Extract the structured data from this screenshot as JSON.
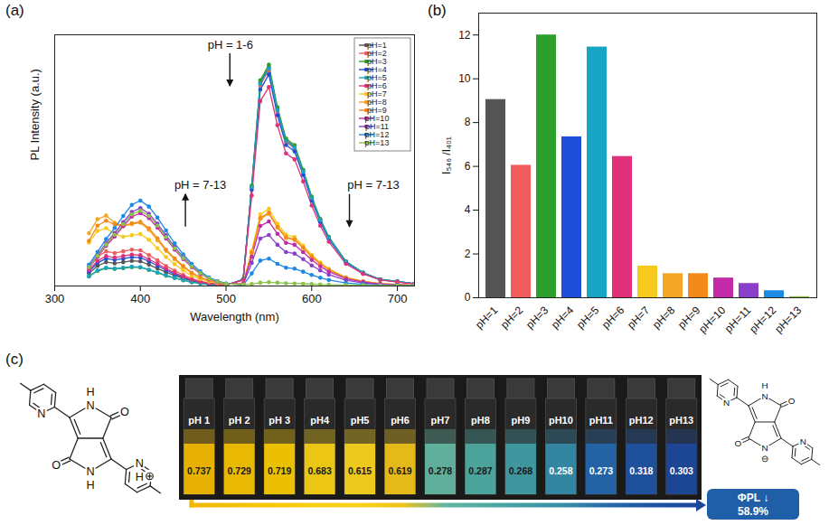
{
  "chart_data": [
    {
      "type": "line",
      "title": "(a)",
      "x_label": "Wavelength (nm)",
      "y_label": "PL Intensity (a.u.)",
      "x": [
        340,
        350,
        360,
        370,
        380,
        390,
        400,
        410,
        420,
        430,
        440,
        450,
        460,
        470,
        480,
        490,
        500,
        520,
        530,
        540,
        550,
        560,
        570,
        580,
        590,
        600,
        610,
        620,
        640,
        660,
        680,
        700,
        720
      ],
      "series": [
        {
          "name": "pH=1",
          "color": "#555555",
          "values": [
            5,
            8,
            9.5,
            9,
            9.5,
            10,
            9.8,
            8.5,
            7,
            5.5,
            4.2,
            3,
            2,
            1.3,
            0.8,
            0.5,
            0.3,
            2.6,
            39.6,
            81,
            87.1,
            70.4,
            58.1,
            55.4,
            45.8,
            35.2,
            26.4,
            19.4,
            9.7,
            5.3,
            2.6,
            1.8,
            0.9
          ]
        },
        {
          "name": "pH=2",
          "color": "#f25c5c",
          "values": [
            7.3,
            11.6,
            13.8,
            13.1,
            13.8,
            14.5,
            14.2,
            12.3,
            10.2,
            8,
            6.1,
            4.4,
            2.9,
            1.9,
            1.2,
            0.7,
            0.4,
            2.6,
            39.2,
            80,
            86.1,
            69.6,
            57.4,
            54.8,
            45.2,
            34.8,
            26.1,
            19.1,
            9.6,
            5.2,
            2.6,
            1.7,
            0.9
          ]
        },
        {
          "name": "pH=3",
          "color": "#2ca02c",
          "values": [
            3.8,
            6,
            7.1,
            6.8,
            7.1,
            7.5,
            7.4,
            6.4,
            5.3,
            4.1,
            3.2,
            2.3,
            1.5,
            1,
            0.6,
            0.4,
            0.2,
            2.7,
            40,
            81.9,
            88.1,
            71.2,
            58.7,
            56.1,
            46.3,
            35.6,
            26.7,
            19.6,
            9.8,
            5.3,
            2.7,
            1.8,
            0.9
          ]
        },
        {
          "name": "pH=4",
          "color": "#1f4fd8",
          "values": [
            5.8,
            9.2,
            10.9,
            10.4,
            10.9,
            11.5,
            11.3,
            9.8,
            8.1,
            6.3,
            4.8,
            3.5,
            2.3,
            1.5,
            0.9,
            0.6,
            0.3,
            2.6,
            38.3,
            78.2,
            84.2,
            68,
            56.1,
            53.6,
            44.2,
            34,
            25.5,
            18.7,
            9.4,
            5.1,
            2.6,
            1.7,
            0.9
          ]
        },
        {
          "name": "pH=5",
          "color": "#18a4c4",
          "values": [
            3.9,
            6.2,
            7.3,
            6.9,
            7.3,
            7.7,
            7.5,
            6.5,
            5.4,
            4.2,
            3.2,
            2.3,
            1.5,
            1,
            0.6,
            0.4,
            0.2,
            2.6,
            39.4,
            80.5,
            86.6,
            70,
            57.8,
            55.1,
            45.5,
            35,
            26.3,
            19.3,
            9.6,
            5.3,
            2.6,
            1.8,
            0.9
          ]
        },
        {
          "name": "pH=6",
          "color": "#e0307a",
          "values": [
            6.3,
            10,
            11.9,
            11.3,
            11.9,
            12.5,
            12.3,
            10.6,
            8.8,
            6.9,
            5.3,
            3.8,
            2.5,
            1.6,
            1,
            0.6,
            0.4,
            2.4,
            36,
            73.6,
            79.2,
            64,
            52.8,
            50.4,
            41.6,
            32,
            24,
            17.6,
            8.8,
            4.8,
            2.4,
            1.6,
            0.8
          ]
        },
        {
          "name": "pH=7",
          "color": "#f7c81e",
          "values": [
            17.3,
            21.9,
            23,
            20.7,
            19.6,
            20.2,
            20.7,
            18.4,
            15,
            11.5,
            8.7,
            6.2,
            4.1,
            2.8,
            1.8,
            1.2,
            0.7,
            0.9,
            14,
            28.5,
            30.7,
            24.8,
            20.5,
            19.5,
            16.1,
            12.4,
            9.3,
            6.8,
            3.4,
            1.9,
            0.9,
            0.6,
            0.3
          ]
        },
        {
          "name": "pH=8",
          "color": "#f5a524",
          "values": [
            21,
            26.6,
            28,
            25.2,
            23.8,
            24.6,
            25.2,
            22.4,
            18.2,
            14,
            10.6,
            7.6,
            5,
            3.4,
            2.2,
            1.4,
            0.8,
            0.9,
            13.1,
            26.7,
            28.7,
            23.2,
            19.1,
            18.3,
            15.1,
            11.6,
            8.7,
            6.4,
            3.2,
            1.7,
            0.9,
            0.6,
            0.3
          ]
        },
        {
          "name": "pH=9",
          "color": "#f28a1c",
          "values": [
            18,
            24,
            26,
            24.5,
            24,
            25,
            25.5,
            23,
            19,
            14.5,
            11,
            8,
            5.3,
            3.5,
            2.2,
            1.4,
            0.8,
            0.9,
            13.3,
            27.1,
            29.2,
            23.6,
            19.5,
            18.6,
            15.3,
            11.8,
            8.9,
            6.5,
            3.2,
            1.8,
            0.9,
            0.6,
            0.3
          ]
        },
        {
          "name": "pH=10",
          "color": "#c22aa8",
          "values": [
            7.3,
            11.6,
            16,
            19.7,
            23.8,
            27.6,
            29,
            27,
            23.2,
            18.9,
            14.5,
            10.7,
            7.5,
            4.9,
            2.9,
            1.7,
            0.9,
            0.8,
            11.7,
            23.9,
            25.7,
            20.8,
            17.2,
            16.4,
            13.5,
            10.4,
            7.8,
            5.7,
            2.9,
            1.6,
            0.8,
            0.5,
            0.3
          ]
        },
        {
          "name": "pH=11",
          "color": "#8a3fc9",
          "values": [
            7.8,
            12.4,
            17.1,
            21.1,
            25.4,
            29.5,
            31,
            28.8,
            24.8,
            20.2,
            15.5,
            11.5,
            8.1,
            5.3,
            3.1,
            1.9,
            0.9,
            0.6,
            9.2,
            18.9,
            20.3,
            16.4,
            13.5,
            12.9,
            10.7,
            8.2,
            6.2,
            4.5,
            2.3,
            1.2,
            0.6,
            0.4,
            0.2
          ]
        },
        {
          "name": "pH=12",
          "color": "#1e88e5",
          "values": [
            8.5,
            13.6,
            18.7,
            23.1,
            27.9,
            32.3,
            34,
            31.6,
            27.2,
            22.1,
            17,
            12.6,
            8.8,
            5.8,
            3.4,
            2,
            1,
            0.3,
            5,
            10.1,
            10.9,
            8.8,
            7.3,
            6.9,
            5.7,
            4.4,
            3.3,
            2.4,
            1.2,
            0.7,
            0.3,
            0.2,
            0.1
          ]
        },
        {
          "name": "pH=13",
          "color": "#8bc34a",
          "values": [
            7.5,
            12,
            16.5,
            20.4,
            24.6,
            28.5,
            30,
            27.9,
            24,
            19.5,
            15,
            11.1,
            7.8,
            5.1,
            3,
            1.8,
            0.9,
            0.5,
            0.8,
            1.3,
            1.5,
            1.3,
            1.1,
            1,
            0.9,
            0.8,
            0.6,
            0.5,
            0.4,
            0.3,
            0.2,
            0.2,
            0.1
          ]
        }
      ],
      "xlim": [
        300,
        720
      ],
      "xticks": [
        300,
        400,
        500,
        600,
        700
      ],
      "ylim": [
        0,
        100
      ],
      "yticks": [],
      "tick_labels": "x",
      "legend": "top-right",
      "marker": "circle",
      "annotations": [
        {
          "text": "pH = 1-6",
          "x": 505,
          "y": 96
        },
        {
          "text": "pH = 7-13",
          "x": 470,
          "y": 40
        },
        {
          "text": "pH = 7-13",
          "x": 672,
          "y": 40
        }
      ]
    },
    {
      "type": "bar",
      "title": "(b)",
      "y_label": "I₅₄₆ /I₄₀₁",
      "categories": [
        "pH=1",
        "pH=2",
        "pH=3",
        "pH=4",
        "pH=5",
        "pH=6",
        "pH=7",
        "pH=8",
        "pH=9",
        "pH=10",
        "pH=11",
        "pH=12",
        "pH=13"
      ],
      "values": [
        9.05,
        6.05,
        12.0,
        7.35,
        11.45,
        6.45,
        1.45,
        1.1,
        1.1,
        0.9,
        0.65,
        0.32,
        0.05
      ],
      "colors": [
        "#555555",
        "#f25c5c",
        "#2ca02c",
        "#1f4fd8",
        "#18a4c4",
        "#e0307a",
        "#f7c81e",
        "#f5a524",
        "#f28a1c",
        "#c22aa8",
        "#8a3fc9",
        "#1e88e5",
        "#8bc34a"
      ],
      "ylim": [
        0,
        13
      ],
      "yticks": [
        0,
        2,
        4,
        6,
        8,
        10,
        12
      ]
    },
    {
      "type": "photo",
      "title": "(c)",
      "categories": [
        "pH 1",
        "pH 2",
        "pH 3",
        "pH4",
        "pH5",
        "pH6",
        "pH7",
        "pH8",
        "pH9",
        "pH10",
        "pH11",
        "pH12",
        "pH13"
      ],
      "values": [
        0.737,
        0.729,
        0.719,
        0.683,
        0.615,
        0.619,
        0.278,
        0.287,
        0.268,
        0.258,
        0.273,
        0.318,
        0.303
      ],
      "colors": [
        "#f0b800",
        "#f3c000",
        "#f6c800",
        "#f7cf14",
        "#f8d21e",
        "#eec21a",
        "#62b6a0",
        "#4eaaa2",
        "#409ca4",
        "#348aa8",
        "#2466aa",
        "#1d52a2",
        "#1b479a"
      ],
      "annotation": [
        "ΦPL ↓",
        "58.9%"
      ],
      "structures": [
        {
          "atoms": [
            "H",
            "N",
            "O",
            "O",
            "N",
            "H",
            "N",
            "N",
            "H",
            "⊕"
          ]
        },
        {
          "atoms": [
            "H",
            "N",
            "O",
            "O",
            "N",
            "⊖",
            "N",
            "N"
          ]
        }
      ]
    }
  ]
}
